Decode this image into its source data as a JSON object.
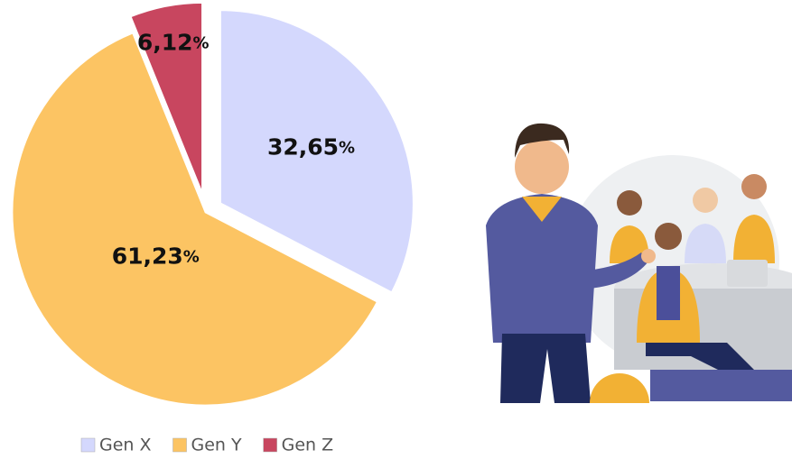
{
  "chart_data": {
    "type": "pie",
    "categories": [
      "Gen X",
      "Gen Y",
      "Gen Z"
    ],
    "values": [
      32.65,
      61.23,
      6.12
    ],
    "value_labels": [
      "32,65%",
      "61,23%",
      "6,12%"
    ],
    "colors": [
      "#d4d8fd",
      "#fcc463",
      "#c8465f"
    ],
    "legend": "bottom"
  }
}
